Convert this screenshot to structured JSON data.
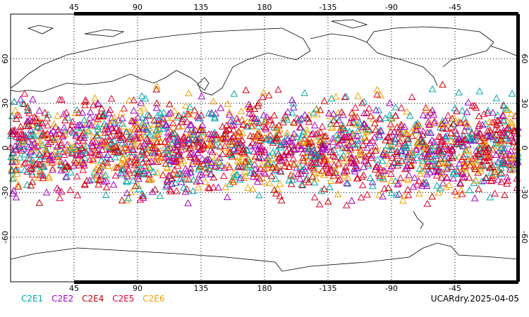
{
  "map": {
    "projection": "cylindrical equidistant",
    "lon_ticks": [
      "45",
      "90",
      "135",
      "180",
      "-135",
      "-90",
      "-45"
    ],
    "lat_ticks": [
      "60",
      "30",
      "0",
      "-30",
      "-60"
    ],
    "gridlines": "dotted",
    "marker": "open-triangle",
    "lat_band": [
      -45,
      45
    ]
  },
  "legend": [
    {
      "label": "C2E1",
      "color": "#00a8a8"
    },
    {
      "label": "C2E2",
      "color": "#a000c8"
    },
    {
      "label": "C2E4",
      "color": "#c80000"
    },
    {
      "label": "C2E5",
      "color": "#e60032"
    },
    {
      "label": "C2E6",
      "color": "#f0a000"
    }
  ],
  "stamp": "UCARdry.2025-04-05"
}
